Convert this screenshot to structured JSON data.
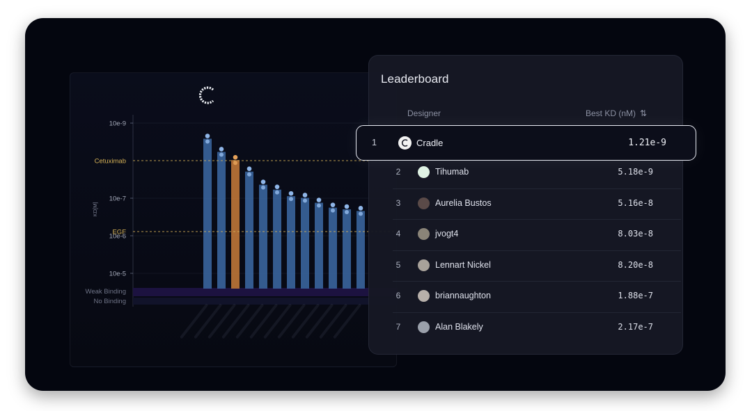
{
  "leaderboard": {
    "title": "Leaderboard",
    "columns": {
      "designer": "Designer",
      "best_kd": "Best KD (nM)"
    },
    "rows": [
      {
        "rank": "1",
        "name": "Cradle",
        "kd": "1.21e-9",
        "avatar_color": "#f2f2f2",
        "highlighted": true
      },
      {
        "rank": "2",
        "name": "Tihumab",
        "kd": "5.18e-9",
        "avatar_color": "#dff2e4"
      },
      {
        "rank": "3",
        "name": "Aurelia Bustos",
        "kd": "5.16e-8",
        "avatar_color": "#5a4a48"
      },
      {
        "rank": "4",
        "name": "jvogt4",
        "kd": "8.03e-8",
        "avatar_color": "#8a8478"
      },
      {
        "rank": "5",
        "name": "Lennart Nickel",
        "kd": "8.20e-8",
        "avatar_color": "#a8a29a"
      },
      {
        "rank": "6",
        "name": "briannaughton",
        "kd": "1.88e-7",
        "avatar_color": "#b7b0aa"
      },
      {
        "rank": "7",
        "name": "Alan Blakely",
        "kd": "2.17e-7",
        "avatar_color": "#9aa0aa"
      }
    ]
  },
  "chart_data": {
    "type": "bar",
    "ylabel": "KD[M]",
    "yticks": [
      "10e-9",
      "10e-7",
      "10e-6",
      "10e-5"
    ],
    "reference_lines": [
      {
        "label": "Cetuximab",
        "color": "#d8b457"
      },
      {
        "label": "EGF",
        "color": "#d8b457"
      }
    ],
    "bands": [
      {
        "label": "Weak Binding"
      },
      {
        "label": "No Binding"
      }
    ],
    "series": [
      {
        "values": [
          0.93,
          0.85,
          0.8,
          0.73,
          0.65,
          0.62,
          0.58,
          0.57,
          0.54,
          0.51,
          0.5,
          0.49
        ],
        "highlight_index": 2,
        "color": "#3c6aa4",
        "highlight_color": "#c97c3a"
      }
    ]
  },
  "colors": {
    "background": "#04060f",
    "panel": "#161824",
    "accent_gold": "#d8b457",
    "bar_blue": "#3c6aa4",
    "bar_orange": "#c97c3a"
  }
}
